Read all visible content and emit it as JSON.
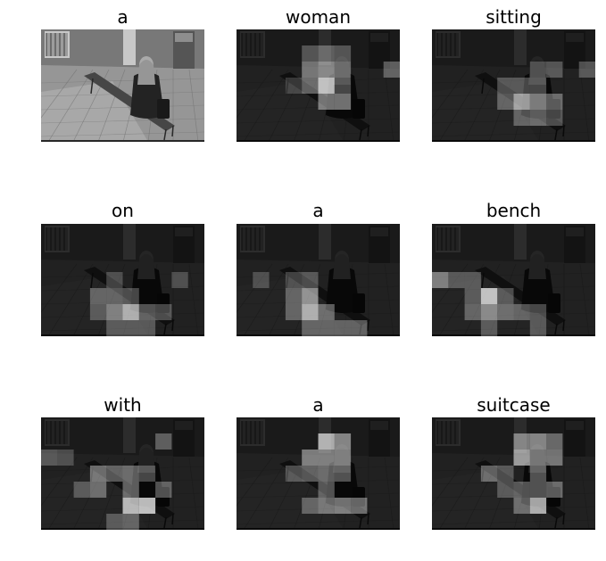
{
  "panels": [
    {
      "word": "a",
      "attention": [],
      "mode": "original"
    },
    {
      "word": "woman",
      "attention": [
        [
          5,
          2,
          0.55
        ],
        [
          5,
          3,
          0.85
        ],
        [
          4,
          2,
          0.45
        ],
        [
          6,
          2,
          0.4
        ],
        [
          4,
          3,
          0.4
        ],
        [
          5,
          4,
          0.5
        ],
        [
          6,
          4,
          0.5
        ],
        [
          4,
          1,
          0.3
        ],
        [
          5,
          1,
          0.35
        ],
        [
          6,
          1,
          0.3
        ],
        [
          9,
          2,
          0.35
        ],
        [
          3,
          3,
          0.2
        ],
        [
          6,
          3,
          0.3
        ]
      ],
      "mode": "attention"
    },
    {
      "word": "sitting",
      "attention": [
        [
          5,
          4,
          0.7
        ],
        [
          6,
          4,
          0.55
        ],
        [
          4,
          4,
          0.35
        ],
        [
          5,
          5,
          0.35
        ],
        [
          6,
          5,
          0.4
        ],
        [
          7,
          4,
          0.4
        ],
        [
          4,
          3,
          0.3
        ],
        [
          5,
          3,
          0.3
        ],
        [
          6,
          3,
          0.3
        ],
        [
          7,
          2,
          0.3
        ],
        [
          9,
          2,
          0.3
        ],
        [
          6,
          2,
          0.25
        ],
        [
          7,
          5,
          0.3
        ]
      ],
      "mode": "attention"
    },
    {
      "word": "on",
      "attention": [
        [
          5,
          5,
          0.75
        ],
        [
          4,
          5,
          0.5
        ],
        [
          6,
          5,
          0.35
        ],
        [
          4,
          4,
          0.35
        ],
        [
          3,
          4,
          0.35
        ],
        [
          5,
          4,
          0.3
        ],
        [
          4,
          6,
          0.3
        ],
        [
          5,
          6,
          0.3
        ],
        [
          6,
          6,
          0.3
        ],
        [
          3,
          5,
          0.3
        ],
        [
          4,
          3,
          0.25
        ],
        [
          7,
          5,
          0.3
        ],
        [
          8,
          3,
          0.25
        ]
      ],
      "mode": "attention"
    },
    {
      "word": "a",
      "attention": [
        [
          4,
          5,
          0.75
        ],
        [
          4,
          4,
          0.6
        ],
        [
          3,
          4,
          0.35
        ],
        [
          5,
          5,
          0.4
        ],
        [
          3,
          5,
          0.35
        ],
        [
          5,
          6,
          0.35
        ],
        [
          6,
          6,
          0.35
        ],
        [
          7,
          6,
          0.35
        ],
        [
          4,
          6,
          0.35
        ],
        [
          1,
          3,
          0.25
        ],
        [
          4,
          3,
          0.3
        ],
        [
          3,
          3,
          0.25
        ]
      ],
      "mode": "attention"
    },
    {
      "word": "bench",
      "attention": [
        [
          3,
          4,
          0.85
        ],
        [
          3,
          5,
          0.55
        ],
        [
          4,
          5,
          0.4
        ],
        [
          2,
          5,
          0.35
        ],
        [
          0,
          3,
          0.5
        ],
        [
          1,
          3,
          0.3
        ],
        [
          2,
          4,
          0.3
        ],
        [
          2,
          3,
          0.3
        ],
        [
          4,
          4,
          0.3
        ],
        [
          5,
          5,
          0.35
        ],
        [
          6,
          5,
          0.3
        ],
        [
          6,
          6,
          0.3
        ],
        [
          3,
          6,
          0.3
        ]
      ],
      "mode": "attention"
    },
    {
      "word": "with",
      "attention": [
        [
          5,
          5,
          0.8
        ],
        [
          6,
          5,
          0.85
        ],
        [
          3,
          3,
          0.45
        ],
        [
          3,
          4,
          0.4
        ],
        [
          2,
          4,
          0.3
        ],
        [
          5,
          3,
          0.4
        ],
        [
          5,
          4,
          0.4
        ],
        [
          4,
          3,
          0.35
        ],
        [
          6,
          3,
          0.3
        ],
        [
          5,
          6,
          0.35
        ],
        [
          4,
          6,
          0.3
        ],
        [
          7,
          4,
          0.35
        ],
        [
          0,
          2,
          0.3
        ],
        [
          1,
          2,
          0.25
        ],
        [
          7,
          1,
          0.35
        ]
      ],
      "mode": "attention"
    },
    {
      "word": "a",
      "attention": [
        [
          5,
          1,
          0.75
        ],
        [
          6,
          1,
          0.55
        ],
        [
          5,
          2,
          0.5
        ],
        [
          4,
          2,
          0.5
        ],
        [
          6,
          2,
          0.5
        ],
        [
          5,
          3,
          0.4
        ],
        [
          6,
          3,
          0.35
        ],
        [
          3,
          3,
          0.3
        ],
        [
          4,
          3,
          0.35
        ],
        [
          5,
          5,
          0.45
        ],
        [
          6,
          5,
          0.5
        ],
        [
          7,
          5,
          0.45
        ],
        [
          5,
          4,
          0.35
        ],
        [
          4,
          5,
          0.35
        ]
      ],
      "mode": "attention"
    },
    {
      "word": "suitcase",
      "attention": [
        [
          6,
          5,
          0.75
        ],
        [
          5,
          2,
          0.65
        ],
        [
          6,
          1,
          0.55
        ],
        [
          5,
          1,
          0.5
        ],
        [
          7,
          1,
          0.4
        ],
        [
          6,
          2,
          0.45
        ],
        [
          7,
          2,
          0.45
        ],
        [
          3,
          3,
          0.4
        ],
        [
          4,
          3,
          0.3
        ],
        [
          6,
          3,
          0.35
        ],
        [
          5,
          4,
          0.35
        ],
        [
          6,
          4,
          0.35
        ],
        [
          7,
          4,
          0.4
        ],
        [
          5,
          5,
          0.4
        ],
        [
          4,
          4,
          0.3
        ]
      ],
      "mode": "attention"
    }
  ]
}
